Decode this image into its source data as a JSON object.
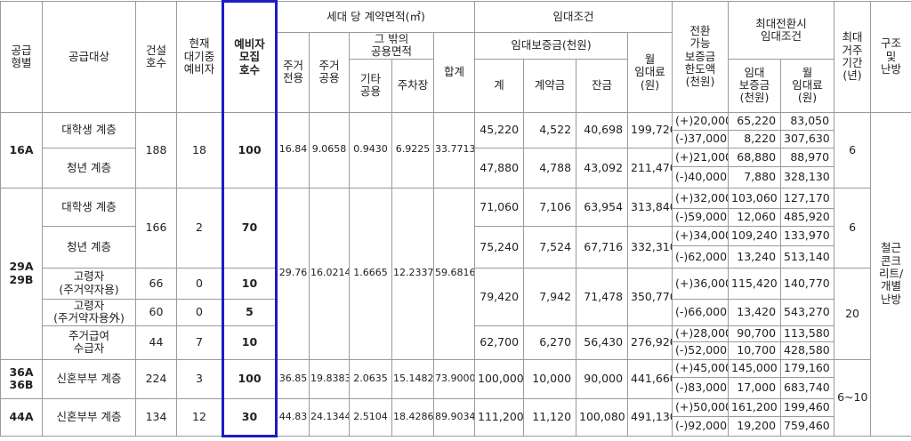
{
  "header": {
    "supply_type": "공급\n형별",
    "supply_target": "공급대상",
    "construction_units": "건설\n호수",
    "current_waiting": "현재\n대기중\n예비자",
    "recruit_units": "예비자\n모집\n호수",
    "area_group": "세대 당 계약면적(㎡)",
    "rent_group": "임대조건",
    "convertible_limit": "전환\n가능\n보증금\n한도액\n(천원)",
    "max_conversion_group": "최대전환시\n임대조건",
    "max_period": "최대\n거주\n기간\n(년)",
    "structure": "구조\n및\n난방",
    "exclusive": "주거\n전용",
    "common": "주거\n공용",
    "other_common_group": "그 밖의\n공용면적",
    "total_area": "합계",
    "deposit_group": "임대보증금(천원)",
    "monthly_rent": "월\n임대료\n(원)",
    "other_common": "기타\n공용",
    "parking": "주차장",
    "deposit_total": "계",
    "contract_fee": "계약금",
    "balance": "잔금",
    "max_deposit": "임대\n보증금\n(천원)",
    "max_monthly_rent": "월\n임대료\n(원)"
  },
  "types": [
    "16A",
    "29A\n29B",
    "36A\n36B",
    "44A"
  ],
  "targets": [
    "대학생 계층",
    "청년 계층",
    "대학생 계층",
    "청년 계층",
    "고령자\n(주거약자용)",
    "고령자\n(주거약자용外)",
    "주거급여\n수급자",
    "신혼부부 계층",
    "신혼부부 계층"
  ],
  "units": [
    {
      "construction": 188,
      "waiting": 18,
      "recruit": 100
    },
    {
      "construction": 166,
      "waiting": 2,
      "recruit": 70
    },
    {
      "construction": 66,
      "waiting": 0,
      "recruit": 10
    },
    {
      "construction": 60,
      "waiting": 0,
      "recruit": 5
    },
    {
      "construction": 44,
      "waiting": 7,
      "recruit": 10
    },
    {
      "construction": 224,
      "waiting": 3,
      "recruit": 100
    },
    {
      "construction": 134,
      "waiting": 12,
      "recruit": 30
    }
  ],
  "areas": [
    {
      "exclusive": "16.84",
      "common": "9.0658",
      "other": "0.9430",
      "parking": "6.9225",
      "total": "33.7713"
    },
    {
      "exclusive": "29.76",
      "common": "16.0214",
      "other": "1.6665",
      "parking": "12.2337",
      "total": "59.6816"
    },
    {
      "exclusive": "36.85",
      "common": "19.8383",
      "other": "2.0635",
      "parking": "15.1482",
      "total": "73.9000"
    },
    {
      "exclusive": "44.83",
      "common": "24.1344",
      "other": "2.5104",
      "parking": "18.4286",
      "total": "89.9034"
    }
  ],
  "rents": [
    {
      "deposit": "45,220",
      "contract": "4,522",
      "balance": "40,698",
      "monthly": "199,720"
    },
    {
      "deposit": "47,880",
      "contract": "4,788",
      "balance": "43,092",
      "monthly": "211,470"
    },
    {
      "deposit": "71,060",
      "contract": "7,106",
      "balance": "63,954",
      "monthly": "313,840"
    },
    {
      "deposit": "75,240",
      "contract": "7,524",
      "balance": "67,716",
      "monthly": "332,310"
    },
    {
      "deposit": "79,420",
      "contract": "7,942",
      "balance": "71,478",
      "monthly": "350,770"
    },
    {
      "deposit": "62,700",
      "contract": "6,270",
      "balance": "56,430",
      "monthly": "276,920"
    },
    {
      "deposit": "100,000",
      "contract": "10,000",
      "balance": "90,000",
      "monthly": "441,660"
    },
    {
      "deposit": "111,200",
      "contract": "11,120",
      "balance": "100,080",
      "monthly": "491,130"
    }
  ],
  "conversions": [
    {
      "limit": "(+)20,000",
      "deposit": "65,220",
      "monthly": "83,050"
    },
    {
      "limit": "(-)37,000",
      "deposit": "8,220",
      "monthly": "307,630"
    },
    {
      "limit": "(+)21,000",
      "deposit": "68,880",
      "monthly": "88,970"
    },
    {
      "limit": "(-)40,000",
      "deposit": "7,880",
      "monthly": "328,130"
    },
    {
      "limit": "(+)32,000",
      "deposit": "103,060",
      "monthly": "127,170"
    },
    {
      "limit": "(-)59,000",
      "deposit": "12,060",
      "monthly": "485,920"
    },
    {
      "limit": "(+)34,000",
      "deposit": "109,240",
      "monthly": "133,970"
    },
    {
      "limit": "(-)62,000",
      "deposit": "13,240",
      "monthly": "513,140"
    },
    {
      "limit": "(+)36,000",
      "deposit": "115,420",
      "monthly": "140,770"
    },
    {
      "limit": "(-)66,000",
      "deposit": "13,420",
      "monthly": "543,270"
    },
    {
      "limit": "(+)28,000",
      "deposit": "90,700",
      "monthly": "113,580"
    },
    {
      "limit": "(-)52,000",
      "deposit": "10,700",
      "monthly": "428,580"
    },
    {
      "limit": "(+)45,000",
      "deposit": "145,000",
      "monthly": "179,160"
    },
    {
      "limit": "(-)83,000",
      "deposit": "17,000",
      "monthly": "683,740"
    },
    {
      "limit": "(+)50,000",
      "deposit": "161,200",
      "monthly": "199,460"
    },
    {
      "limit": "(-)92,000",
      "deposit": "19,200",
      "monthly": "759,460"
    }
  ],
  "max_period": [
    "6",
    "6",
    "20",
    "6~10"
  ],
  "structure": "철근\n콘크\n리트/\n개별\n난방"
}
